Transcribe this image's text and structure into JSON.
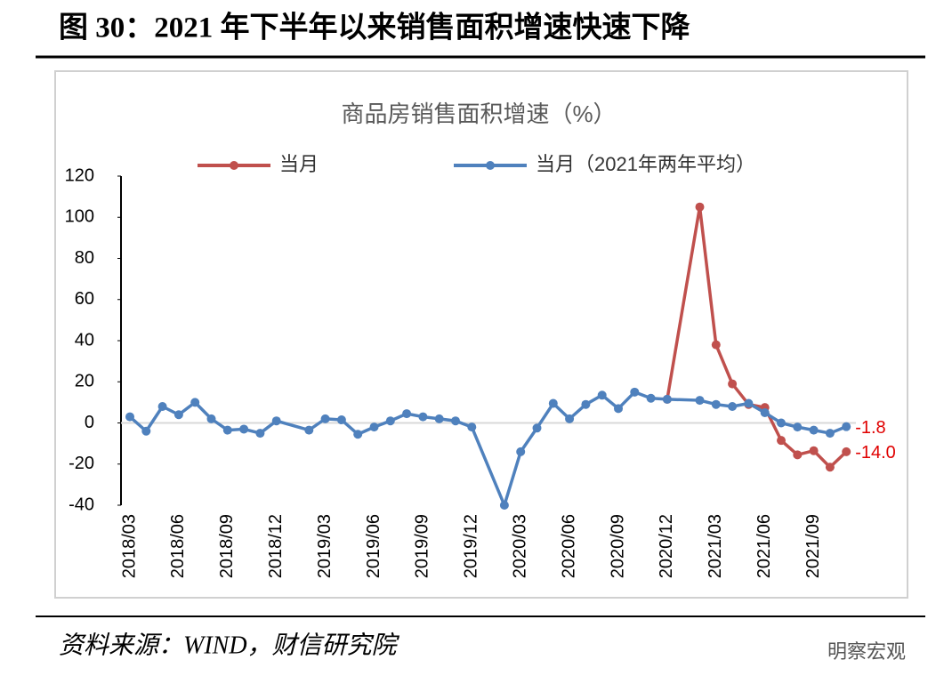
{
  "header": {
    "title": "图 30：2021 年下半年以来销售面积增速快速下降"
  },
  "chart_data": {
    "type": "line",
    "title": "商品房销售面积增速（%）",
    "x": [
      "2018/03",
      "2018/04",
      "2018/05",
      "2018/06",
      "2018/07",
      "2018/08",
      "2018/09",
      "2018/10",
      "2018/11",
      "2018/12",
      "2019/02",
      "2019/03",
      "2019/04",
      "2019/05",
      "2019/06",
      "2019/07",
      "2019/08",
      "2019/09",
      "2019/10",
      "2019/11",
      "2019/12",
      "2020/02",
      "2020/03",
      "2020/04",
      "2020/05",
      "2020/06",
      "2020/07",
      "2020/08",
      "2020/09",
      "2020/10",
      "2020/11",
      "2020/12",
      "2021/02",
      "2021/03",
      "2021/04",
      "2021/05",
      "2021/06",
      "2021/07",
      "2021/08",
      "2021/09",
      "2021/10",
      "2021/11"
    ],
    "xticks": [
      "2018/03",
      "2018/06",
      "2018/09",
      "2018/12",
      "2019/03",
      "2019/06",
      "2019/09",
      "2019/12",
      "2020/03",
      "2020/06",
      "2020/09",
      "2020/12",
      "2021/03",
      "2021/06",
      "2021/09"
    ],
    "series": [
      {
        "name": "当月",
        "color": "#c0504d",
        "values": [
          null,
          null,
          null,
          null,
          null,
          null,
          null,
          null,
          null,
          null,
          null,
          null,
          null,
          null,
          null,
          null,
          null,
          null,
          null,
          null,
          null,
          null,
          null,
          null,
          null,
          null,
          null,
          null,
          null,
          null,
          null,
          11.5,
          105,
          38,
          19,
          9,
          7.5,
          -8.5,
          -15.5,
          -13.5,
          -21.5,
          -14.0
        ],
        "value_labels": [
          null,
          null,
          null,
          null,
          null,
          null,
          null,
          null,
          null,
          null,
          null,
          null,
          null,
          null,
          null,
          null,
          null,
          null,
          null,
          null,
          null,
          null,
          null,
          null,
          null,
          null,
          null,
          null,
          null,
          null,
          null,
          null,
          null,
          null,
          null,
          null,
          null,
          null,
          null,
          null,
          null,
          "-14.0"
        ]
      },
      {
        "name": "当月（2021年两年平均）",
        "color": "#4f81bd",
        "values": [
          3,
          -4,
          8,
          4,
          10,
          2,
          -3.5,
          -3,
          -5,
          1,
          -3.5,
          2,
          1.5,
          -5.5,
          -2,
          1,
          4.5,
          3,
          2,
          1,
          -2,
          -40,
          -14,
          -2.5,
          9.5,
          2,
          9,
          13.5,
          7,
          15,
          12,
          11.5,
          11,
          9,
          8,
          9.5,
          5,
          0,
          -2,
          -3.5,
          -5,
          -1.8
        ],
        "value_labels": [
          null,
          null,
          null,
          null,
          null,
          null,
          null,
          null,
          null,
          null,
          null,
          null,
          null,
          null,
          null,
          null,
          null,
          null,
          null,
          null,
          null,
          null,
          null,
          null,
          null,
          null,
          null,
          null,
          null,
          null,
          null,
          null,
          null,
          null,
          null,
          null,
          null,
          null,
          null,
          null,
          null,
          "-1.8"
        ]
      }
    ],
    "label_color": "#e00000",
    "ylim": [
      -40,
      120
    ],
    "yticks": [
      -40,
      -20,
      0,
      20,
      40,
      60,
      80,
      100,
      120
    ],
    "grid": false,
    "legend": "top"
  },
  "footer": {
    "source": "资料来源：WIND，财信研究院",
    "watermark": "明察宏观"
  }
}
